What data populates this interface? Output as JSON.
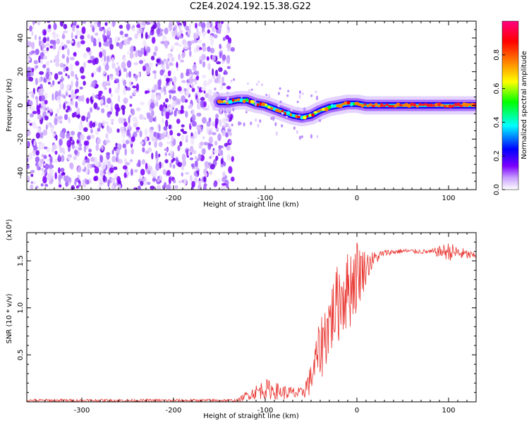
{
  "title": "C2E4.2024.192.15.38.G22",
  "chart_data": [
    {
      "type": "heatmap",
      "xlabel": "Height of straight line (km)",
      "ylabel": "Frequency (Hz)",
      "xlim": [
        -360,
        130
      ],
      "ylim": [
        -50,
        50
      ],
      "xticks": [
        -300,
        -200,
        -100,
        0,
        100
      ],
      "yticks": [
        -40,
        -20,
        0,
        20,
        40
      ],
      "colorbar": {
        "label": "Normalized spectral amplitude",
        "range": [
          0,
          1
        ],
        "ticks": [
          "0.0",
          "0.2",
          "0.4",
          "0.6",
          "0.8"
        ],
        "colors": [
          "#ffffff",
          "#7c00ff",
          "#0000ff",
          "#00ffff",
          "#00ff00",
          "#ffff00",
          "#ff8000",
          "#ff0000",
          "#ff0080"
        ]
      },
      "noise_region_x": [
        -360,
        -140
      ],
      "signal_track": {
        "x": [
          -150,
          -140,
          -130,
          -120,
          -110,
          -100,
          -90,
          -80,
          -70,
          -60,
          -50,
          -40,
          -30,
          -20,
          -10,
          0,
          10,
          50,
          100,
          130
        ],
        "freq": [
          2,
          2,
          3,
          3,
          1,
          0,
          -2,
          -4,
          -6,
          -7,
          -6,
          -3,
          -1,
          0,
          1,
          1,
          0,
          0,
          0,
          0
        ]
      }
    },
    {
      "type": "line",
      "xlabel": "Height of straight line (km)",
      "ylabel": "SNR (10 * v/v)",
      "exponent_label": "(x10⁴)",
      "xlim": [
        -360,
        130
      ],
      "ylim": [
        0,
        1.8
      ],
      "xticks": [
        -300,
        -200,
        -100,
        0,
        100
      ],
      "yticks": [
        "0.5",
        "1.0",
        "1.5"
      ],
      "line_color": "#e8312c",
      "envelope": {
        "x": [
          -360,
          -130,
          -120,
          -100,
          -80,
          -60,
          -50,
          -40,
          -30,
          -20,
          -10,
          0,
          10,
          20,
          30,
          50,
          80,
          100,
          130
        ],
        "min": [
          0.0,
          0.0,
          0.02,
          0.03,
          0.02,
          0.02,
          0.05,
          0.2,
          0.4,
          0.6,
          0.7,
          0.9,
          1.25,
          1.45,
          1.55,
          1.58,
          1.57,
          1.5,
          1.52
        ],
        "max": [
          0.03,
          0.03,
          0.12,
          0.25,
          0.18,
          0.15,
          0.4,
          0.9,
          1.2,
          1.5,
          1.6,
          1.75,
          1.6,
          1.6,
          1.62,
          1.63,
          1.62,
          1.7,
          1.58
        ]
      }
    }
  ]
}
